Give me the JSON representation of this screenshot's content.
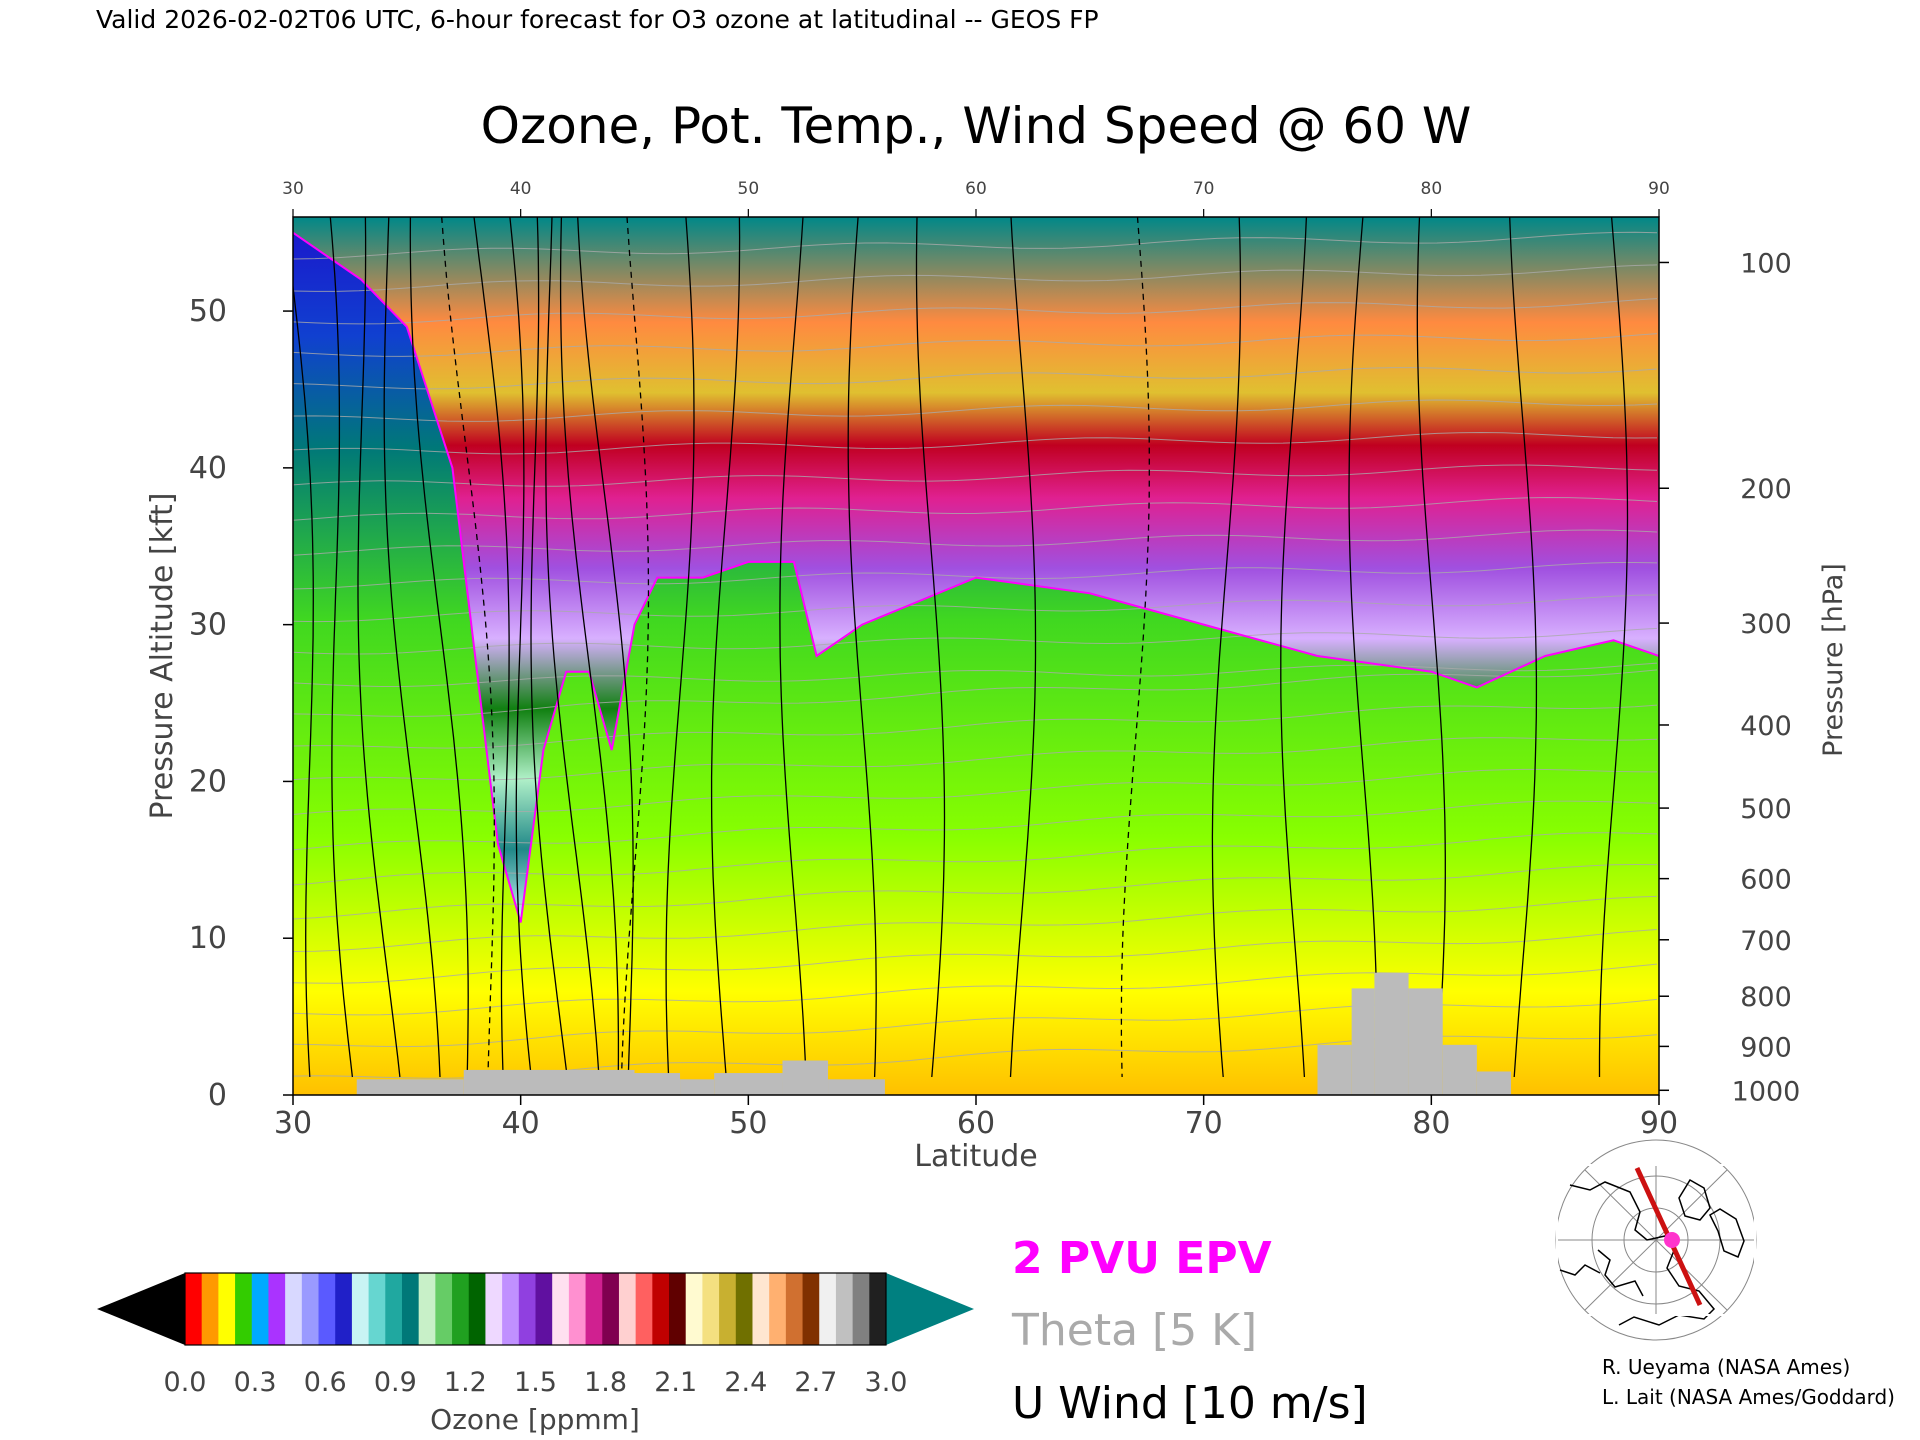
{
  "header": {
    "valid_line": "Valid 2026-02-02T06 UTC, 6-hour forecast for O3 ozone at latitudinal -- GEOS FP"
  },
  "chart_data": {
    "type": "heatmap",
    "title": "Ozone, Pot. Temp., Wind Speed @ 60 W",
    "xlabel": "Latitude",
    "ylabel": "Pressure Altitude [kft]",
    "ylabel_right": "Pressure [hPa]",
    "x_ticks": [
      "30",
      "40",
      "50",
      "60",
      "70",
      "80",
      "90"
    ],
    "y_ticks": [
      "0",
      "10",
      "20",
      "30",
      "40",
      "50"
    ],
    "top_ticks": [
      "30",
      "40",
      "50",
      "60",
      "70",
      "80",
      "90"
    ],
    "pressure_ticks": [
      {
        "label": "100",
        "kft": 53.1
      },
      {
        "label": "200",
        "kft": 38.7
      },
      {
        "label": "300",
        "kft": 30.1
      },
      {
        "label": "400",
        "kft": 23.6
      },
      {
        "label": "500",
        "kft": 18.3
      },
      {
        "label": "600",
        "kft": 13.8
      },
      {
        "label": "700",
        "kft": 9.9
      },
      {
        "label": "800",
        "kft": 6.3
      },
      {
        "label": "900",
        "kft": 3.1
      },
      {
        "label": "1000",
        "kft": 0.3
      }
    ],
    "xlim": [
      30,
      90
    ],
    "ylim": [
      0,
      56
    ],
    "tropopause_kft": [
      [
        30,
        55
      ],
      [
        33,
        52
      ],
      [
        35,
        49
      ],
      [
        37,
        40
      ],
      [
        38,
        28
      ],
      [
        39,
        16
      ],
      [
        40,
        11
      ],
      [
        41,
        22
      ],
      [
        42,
        27
      ],
      [
        43,
        27
      ],
      [
        44,
        22
      ],
      [
        45,
        30
      ],
      [
        46,
        33
      ],
      [
        48,
        33
      ],
      [
        50,
        34
      ],
      [
        52,
        34
      ],
      [
        53,
        28
      ],
      [
        55,
        30
      ],
      [
        60,
        33
      ],
      [
        65,
        32
      ],
      [
        70,
        30
      ],
      [
        75,
        28
      ],
      [
        80,
        27
      ],
      [
        82,
        26
      ],
      [
        85,
        28
      ],
      [
        88,
        29
      ],
      [
        90,
        28
      ]
    ],
    "colorbar": {
      "label": "Ozone [ppmm]",
      "ticks": [
        "0.0",
        "0.3",
        "0.6",
        "0.9",
        "1.2",
        "1.5",
        "1.8",
        "2.1",
        "2.4",
        "2.7",
        "3.0"
      ],
      "min": 0.0,
      "max": 3.0,
      "colors": [
        "#ff0000",
        "#ff9900",
        "#ffff00",
        "#33cc00",
        "#00aaff",
        "#aa33ff",
        "#d8d8ff",
        "#9a9aff",
        "#5a5aff",
        "#2020c8",
        "#c8f4f4",
        "#66d6d0",
        "#20a8a0",
        "#007878",
        "#c8f0c8",
        "#66cc66",
        "#20a020",
        "#006400",
        "#eed8ff",
        "#c090ff",
        "#9040e0",
        "#6010a0",
        "#ffe0f0",
        "#ff90d0",
        "#d02090",
        "#800050",
        "#ffd0d0",
        "#ff6060",
        "#c00000",
        "#600000",
        "#fffad0",
        "#f4e080",
        "#c8b030",
        "#707000",
        "#ffe6d0",
        "#ffb070",
        "#d07030",
        "#803000",
        "#f0f0f0",
        "#c0c0c0",
        "#808080",
        "#202020"
      ],
      "under_color": "#000000",
      "over_color": "#008080"
    }
  },
  "legend": {
    "epv": "2 PVU EPV",
    "theta": "Theta [5 K]",
    "uwind": "U Wind [10 m/s]",
    "epv_color": "#ff00ff",
    "theta_color": "#aaaaaa",
    "uwind_color": "#000000"
  },
  "map": {
    "marker_color": "#ff33cc",
    "path_color": "#cc1111"
  },
  "credits": {
    "line1": "R. Ueyama (NASA Ames)",
    "line2": "L. Lait (NASA Ames/Goddard)"
  }
}
